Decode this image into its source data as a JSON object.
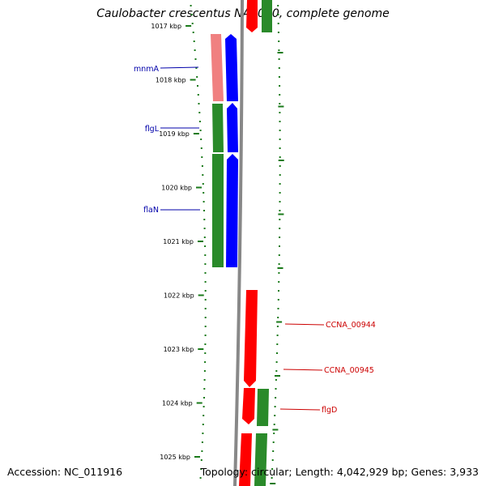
{
  "title": "Caulobacter crescentus NA1000, complete genome",
  "footer": {
    "accession": "Accession: NC_011916",
    "topology": "Topology: circular; Length: 4,042,929 bp; Genes: 3,933"
  },
  "colors": {
    "left_label": "#0000aa",
    "right_label": "#cc0000",
    "tick": "#1a7a1a",
    "backbone": "#888888",
    "forward_gene": "#ff0000",
    "forward_cds": "#2a8a2a",
    "reverse_gene": "#0000ff",
    "reverse_cds": "#2a8a2a",
    "rrna": "#f08080"
  },
  "scale": {
    "kbp_labels": [
      "1017 kbp",
      "1018 kbp",
      "1019 kbp",
      "1020 kbp",
      "1021 kbp",
      "1022 kbp",
      "1023 kbp",
      "1024 kbp",
      "1025 kbp"
    ],
    "kbp_values": [
      1017,
      1018,
      1019,
      1020,
      1021,
      1022,
      1023,
      1024,
      1025
    ]
  },
  "genes_left": [
    {
      "name": "mnmA",
      "start_kbp": 1017.15,
      "end_kbp": 1018.4,
      "type": "trna-like"
    },
    {
      "name": "flgL",
      "start_kbp": 1018.4,
      "end_kbp": 1019.35,
      "type": "cds"
    },
    {
      "name": "flaN",
      "start_kbp": 1019.35,
      "end_kbp": 1021.4,
      "type": "cds"
    }
  ],
  "genes_right": [
    {
      "name": "CCNA_00944",
      "start_kbp": 1021.9,
      "end_kbp": 1023.65,
      "type": "gene"
    },
    {
      "name": "CCNA_00945",
      "start_kbp": 1023.7,
      "end_kbp": 1024.4,
      "type": "gene"
    },
    {
      "name": "flgD",
      "start_kbp": 1023.7,
      "end_kbp": 1024.4,
      "type": "cds"
    }
  ]
}
